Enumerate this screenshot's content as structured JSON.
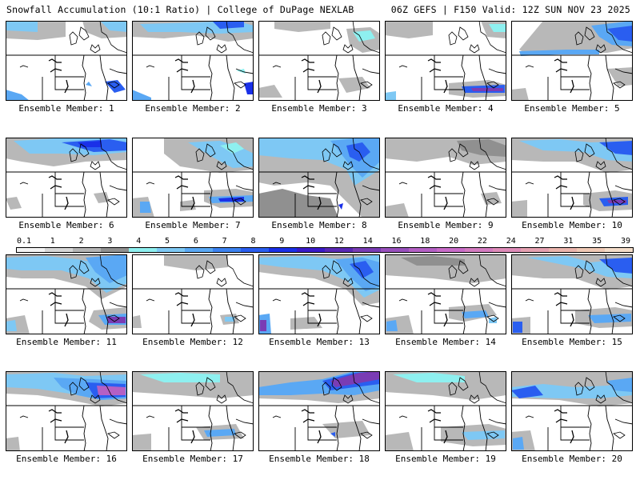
{
  "header": {
    "left_title": "Snowfall Accumulation (10:1 Ratio) | College of DuPage NEXLAB",
    "right_title": "06Z GEFS | F150 Valid: 12Z SUN NOV 23 2025"
  },
  "caption_prefix": "Ensemble Member: ",
  "members": [
    {
      "id": "1",
      "caption": "Ensemble Member: 1"
    },
    {
      "id": "2",
      "caption": "Ensemble Member: 2"
    },
    {
      "id": "3",
      "caption": "Ensemble Member: 3"
    },
    {
      "id": "4",
      "caption": "Ensemble Member: 4"
    },
    {
      "id": "5",
      "caption": "Ensemble Member: 5"
    },
    {
      "id": "6",
      "caption": "Ensemble Member: 6"
    },
    {
      "id": "7",
      "caption": "Ensemble Member: 7"
    },
    {
      "id": "8",
      "caption": "Ensemble Member: 8"
    },
    {
      "id": "9",
      "caption": "Ensemble Member: 9"
    },
    {
      "id": "10",
      "caption": "Ensemble Member: 10"
    },
    {
      "id": "11",
      "caption": "Ensemble Member: 11"
    },
    {
      "id": "12",
      "caption": "Ensemble Member: 12"
    },
    {
      "id": "13",
      "caption": "Ensemble Member: 13"
    },
    {
      "id": "14",
      "caption": "Ensemble Member: 14"
    },
    {
      "id": "15",
      "caption": "Ensemble Member: 15"
    },
    {
      "id": "16",
      "caption": "Ensemble Member: 16"
    },
    {
      "id": "17",
      "caption": "Ensemble Member: 17"
    },
    {
      "id": "18",
      "caption": "Ensemble Member: 18"
    },
    {
      "id": "19",
      "caption": "Ensemble Member: 19"
    },
    {
      "id": "20",
      "caption": "Ensemble Member: 20"
    }
  ],
  "colorbar": {
    "labels": [
      "0.1",
      "1",
      "2",
      "3",
      "4",
      "5",
      "6",
      "7",
      "8",
      "9",
      "10",
      "12",
      "14",
      "16",
      "18",
      "20",
      "22",
      "24",
      "27",
      "31",
      "35",
      "39"
    ],
    "colors": [
      "#f4f4f4",
      "#d6d6d6",
      "#b4b4b4",
      "#909090",
      "#8ef0f0",
      "#7ec8f4",
      "#5aa8f4",
      "#3c82f0",
      "#2a5ef0",
      "#1a30e8",
      "#3a1ac8",
      "#5a28b4",
      "#7a3cb4",
      "#9850bc",
      "#b460c4",
      "#c86cc8",
      "#d47cc0",
      "#de8cb8",
      "#e4a0b0",
      "#eab4ac",
      "#efc8b4",
      "#f4dcc8"
    ]
  },
  "colors": {
    "background": "#ffffff",
    "map_land": "#ffffff",
    "borders": "#000000",
    "light_snow": "#b4b4b4",
    "moderate_snow": "#5aa8f4",
    "heavy_snow": "#1a30e8",
    "extreme_snow": "#9850bc"
  }
}
